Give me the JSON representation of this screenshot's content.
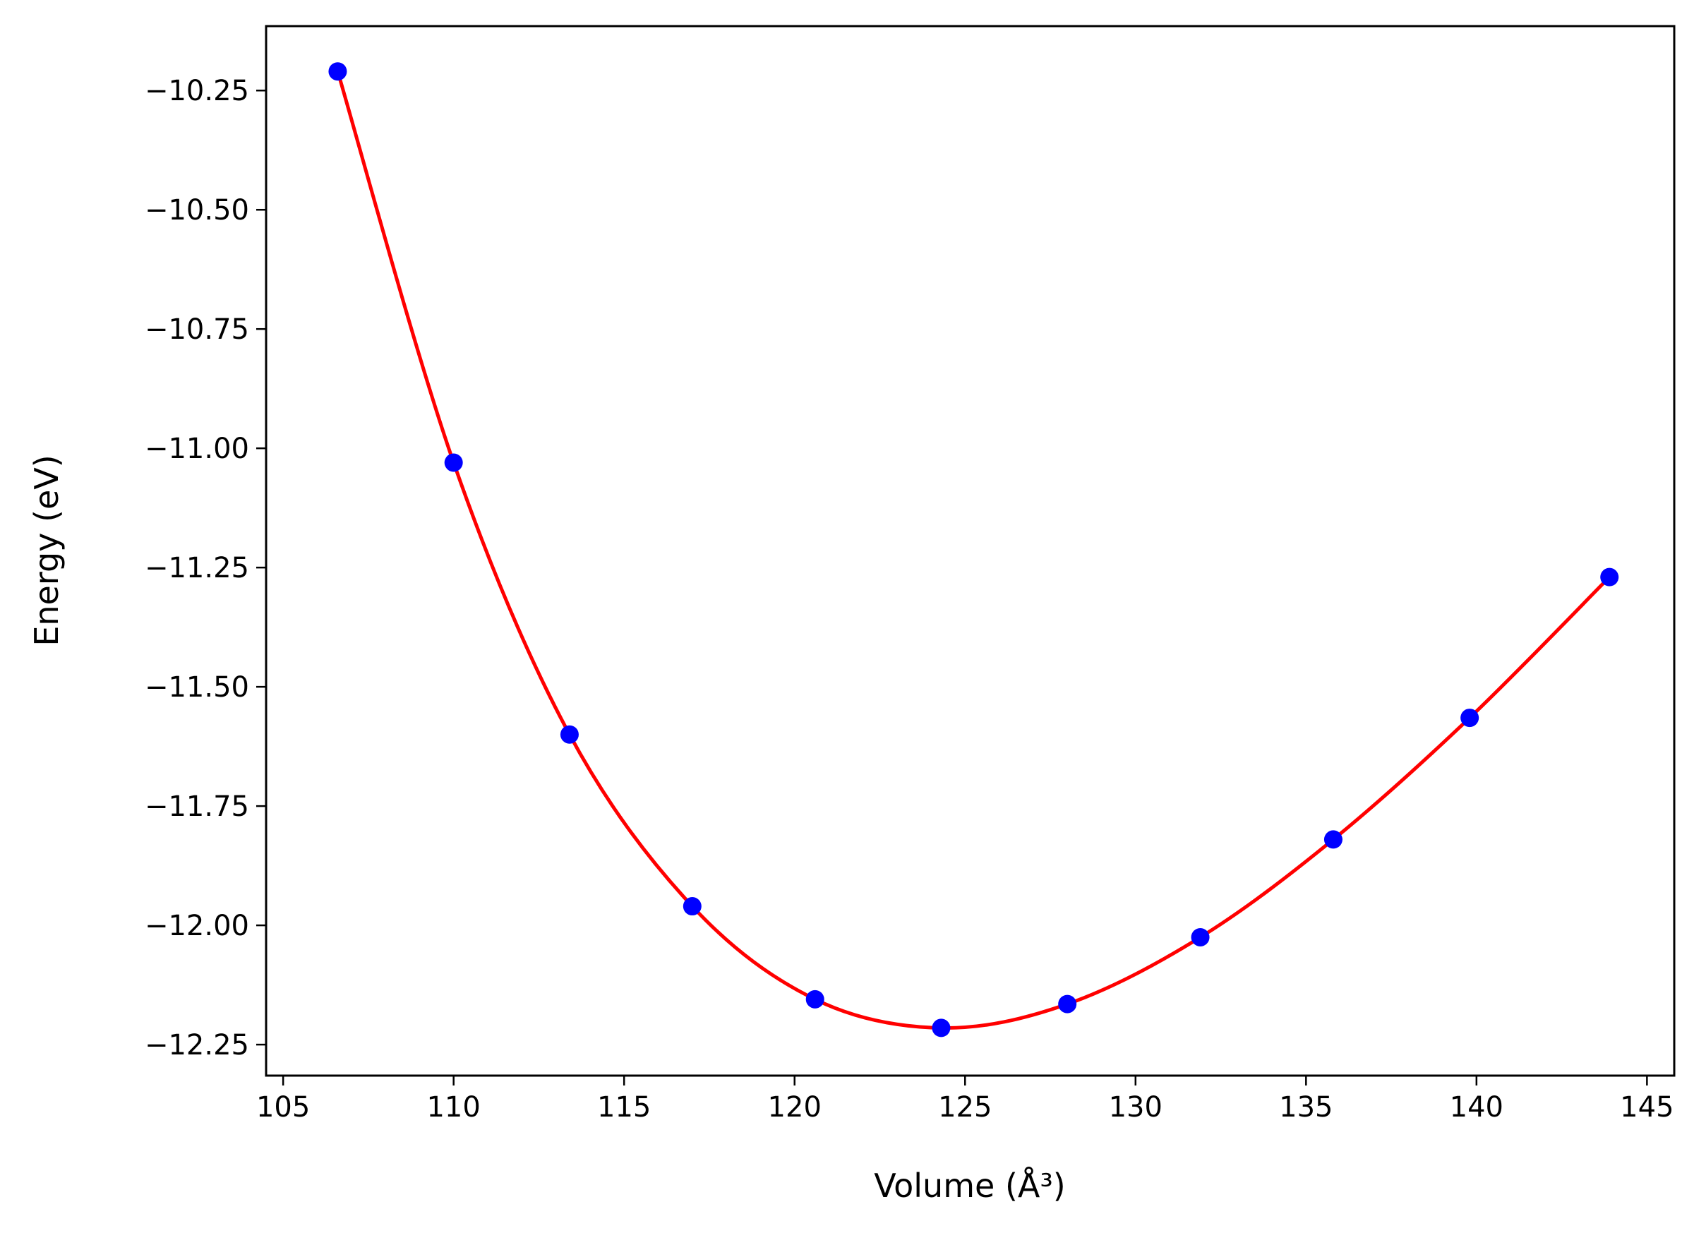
{
  "chart_data": {
    "type": "scatter",
    "xlabel": "Volume (Å³)",
    "ylabel": "Energy (eV)",
    "xlim": [
      104.5,
      145.8
    ],
    "ylim": [
      -12.315,
      -10.115
    ],
    "xticks": [
      105,
      110,
      115,
      120,
      125,
      130,
      135,
      140,
      145
    ],
    "yticks": [
      -10.25,
      -10.5,
      -10.75,
      -11.0,
      -11.25,
      -11.5,
      -11.75,
      -12.0,
      -12.25
    ],
    "xtick_labels": [
      "105",
      "110",
      "115",
      "120",
      "125",
      "130",
      "135",
      "140",
      "145"
    ],
    "ytick_labels": [
      "−10.25",
      "−10.50",
      "−10.75",
      "−11.00",
      "−11.25",
      "−11.50",
      "−11.75",
      "−12.00",
      "−12.25"
    ],
    "grid": false,
    "series": [
      {
        "kind": "points",
        "color": "#0000ff",
        "x": [
          106.6,
          110.0,
          113.4,
          117.0,
          120.6,
          124.3,
          128.0,
          131.9,
          135.8,
          139.8,
          143.9
        ],
        "y": [
          -10.21,
          -11.03,
          -11.6,
          -11.96,
          -12.155,
          -12.215,
          -12.165,
          -12.025,
          -11.82,
          -11.565,
          -11.27
        ]
      },
      {
        "kind": "fit-curve",
        "color": "#ff0000",
        "x": [
          106.6,
          110.0,
          113.4,
          117.0,
          120.6,
          124.3,
          128.0,
          131.9,
          135.8,
          139.8,
          143.9
        ],
        "y": [
          -10.21,
          -11.03,
          -11.6,
          -11.96,
          -12.155,
          -12.215,
          -12.165,
          -12.025,
          -11.82,
          -11.565,
          -11.27
        ]
      }
    ]
  }
}
